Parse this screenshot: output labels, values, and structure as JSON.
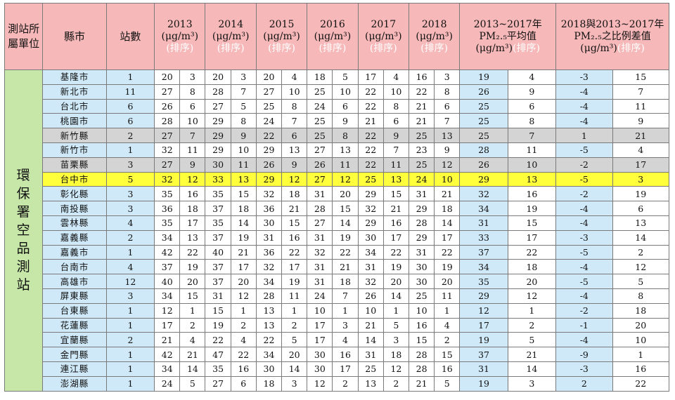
{
  "headers": {
    "unit": "測站所屬單位",
    "county": "縣市",
    "stations": "站數",
    "years": [
      "2013",
      "2014",
      "2015",
      "2016",
      "2017",
      "2018"
    ],
    "unit_text": "(μg/m³)",
    "rank_text": "(排序)",
    "avg_line1": "2013~2017年",
    "avg_line2": "PM₂.₅平均值",
    "avg_unit": "(μg/m³)",
    "diff_line1": "2018與2013~2017年",
    "diff_line2": "PM₂.₅之比例差值",
    "diff_unit": "(μg/m³)"
  },
  "unit_label": [
    "環",
    "保",
    "署",
    "空",
    "品",
    "測",
    "站"
  ],
  "rows": [
    {
      "county": "基隆市",
      "stations": "1",
      "v": [
        "20",
        "3",
        "20",
        "3",
        "20",
        "4",
        "18",
        "5",
        "17",
        "4",
        "16",
        "3"
      ],
      "avg": "19",
      "avg_rank": "4",
      "diff": "-3",
      "diff_rank": "15",
      "hl": ""
    },
    {
      "county": "新北市",
      "stations": "11",
      "v": [
        "27",
        "8",
        "28",
        "7",
        "27",
        "10",
        "25",
        "10",
        "22",
        "10",
        "22",
        "8"
      ],
      "avg": "26",
      "avg_rank": "9",
      "diff": "-4",
      "diff_rank": "7",
      "hl": ""
    },
    {
      "county": "台北市",
      "stations": "6",
      "v": [
        "26",
        "6",
        "27",
        "5",
        "25",
        "8",
        "24",
        "6",
        "22",
        "8",
        "21",
        "6"
      ],
      "avg": "25",
      "avg_rank": "6",
      "diff": "-4",
      "diff_rank": "11",
      "hl": ""
    },
    {
      "county": "桃園市",
      "stations": "6",
      "v": [
        "28",
        "10",
        "29",
        "8",
        "24",
        "7",
        "25",
        "9",
        "21",
        "6",
        "21",
        "7"
      ],
      "avg": "25",
      "avg_rank": "8",
      "diff": "-4",
      "diff_rank": "9",
      "hl": ""
    },
    {
      "county": "新竹縣",
      "stations": "2",
      "v": [
        "27",
        "7",
        "29",
        "9",
        "22",
        "6",
        "25",
        "8",
        "22",
        "9",
        "25",
        "13"
      ],
      "avg": "25",
      "avg_rank": "7",
      "diff": "1",
      "diff_rank": "21",
      "hl": "gray"
    },
    {
      "county": "新竹市",
      "stations": "1",
      "v": [
        "32",
        "11",
        "29",
        "10",
        "29",
        "13",
        "27",
        "13",
        "22",
        "7",
        "23",
        "9"
      ],
      "avg": "28",
      "avg_rank": "11",
      "diff": "-5",
      "diff_rank": "4",
      "hl": ""
    },
    {
      "county": "苗栗縣",
      "stations": "3",
      "v": [
        "27",
        "9",
        "30",
        "11",
        "26",
        "9",
        "26",
        "11",
        "22",
        "11",
        "25",
        "12"
      ],
      "avg": "26",
      "avg_rank": "10",
      "diff": "-2",
      "diff_rank": "17",
      "hl": "gray"
    },
    {
      "county": "台中市",
      "stations": "5",
      "v": [
        "32",
        "12",
        "33",
        "13",
        "29",
        "12",
        "27",
        "12",
        "25",
        "13",
        "24",
        "10"
      ],
      "avg": "29",
      "avg_rank": "13",
      "diff": "-5",
      "diff_rank": "3",
      "hl": "yellow"
    },
    {
      "county": "彰化縣",
      "stations": "3",
      "v": [
        "35",
        "16",
        "35",
        "15",
        "32",
        "18",
        "31",
        "20",
        "29",
        "15",
        "31",
        "21"
      ],
      "avg": "32",
      "avg_rank": "16",
      "diff": "-2",
      "diff_rank": "19",
      "hl": ""
    },
    {
      "county": "南投縣",
      "stations": "3",
      "v": [
        "36",
        "18",
        "37",
        "18",
        "36",
        "21",
        "28",
        "15",
        "32",
        "21",
        "29",
        "18"
      ],
      "avg": "34",
      "avg_rank": "19",
      "diff": "-4",
      "diff_rank": "6",
      "hl": ""
    },
    {
      "county": "雲林縣",
      "stations": "4",
      "v": [
        "35",
        "17",
        "35",
        "14",
        "30",
        "15",
        "27",
        "14",
        "29",
        "16",
        "28",
        "14"
      ],
      "avg": "31",
      "avg_rank": "15",
      "diff": "-4",
      "diff_rank": "13",
      "hl": ""
    },
    {
      "county": "嘉義縣",
      "stations": "2",
      "v": [
        "34",
        "13",
        "37",
        "19",
        "31",
        "16",
        "31",
        "19",
        "30",
        "17",
        "29",
        "17"
      ],
      "avg": "33",
      "avg_rank": "17",
      "diff": "-3",
      "diff_rank": "14",
      "hl": ""
    },
    {
      "county": "嘉義市",
      "stations": "1",
      "v": [
        "42",
        "22",
        "40",
        "21",
        "36",
        "22",
        "32",
        "22",
        "34",
        "22",
        "31",
        "22"
      ],
      "avg": "37",
      "avg_rank": "22",
      "diff": "-5",
      "diff_rank": "2",
      "hl": ""
    },
    {
      "county": "台南市",
      "stations": "4",
      "v": [
        "37",
        "19",
        "37",
        "17",
        "32",
        "17",
        "31",
        "21",
        "31",
        "19",
        "30",
        "19"
      ],
      "avg": "34",
      "avg_rank": "18",
      "diff": "-4",
      "diff_rank": "12",
      "hl": ""
    },
    {
      "county": "高雄市",
      "stations": "12",
      "v": [
        "40",
        "20",
        "37",
        "20",
        "34",
        "19",
        "31",
        "18",
        "32",
        "20",
        "30",
        "20"
      ],
      "avg": "35",
      "avg_rank": "20",
      "diff": "-5",
      "diff_rank": "5",
      "hl": ""
    },
    {
      "county": "屏東縣",
      "stations": "3",
      "v": [
        "34",
        "15",
        "31",
        "12",
        "28",
        "11",
        "24",
        "7",
        "26",
        "14",
        "25",
        "11"
      ],
      "avg": "29",
      "avg_rank": "12",
      "diff": "-4",
      "diff_rank": "8",
      "hl": ""
    },
    {
      "county": "台東縣",
      "stations": "1",
      "v": [
        "12",
        "1",
        "15",
        "1",
        "13",
        "1",
        "10",
        "1",
        "10",
        "1",
        "10",
        "1"
      ],
      "avg": "12",
      "avg_rank": "1",
      "diff": "-2",
      "diff_rank": "18",
      "hl": ""
    },
    {
      "county": "花蓮縣",
      "stations": "1",
      "v": [
        "17",
        "2",
        "19",
        "2",
        "13",
        "2",
        "17",
        "3",
        "21",
        "5",
        "16",
        "4"
      ],
      "avg": "17",
      "avg_rank": "2",
      "diff": "-1",
      "diff_rank": "20",
      "hl": ""
    },
    {
      "county": "宜蘭縣",
      "stations": "2",
      "v": [
        "21",
        "4",
        "22",
        "4",
        "22",
        "5",
        "17",
        "4",
        "14",
        "3",
        "15",
        "2"
      ],
      "avg": "19",
      "avg_rank": "5",
      "diff": "-4",
      "diff_rank": "10",
      "hl": ""
    },
    {
      "county": "金門縣",
      "stations": "1",
      "v": [
        "42",
        "21",
        "47",
        "22",
        "34",
        "20",
        "30",
        "16",
        "31",
        "18",
        "28",
        "15"
      ],
      "avg": "37",
      "avg_rank": "21",
      "diff": "-9",
      "diff_rank": "1",
      "hl": ""
    },
    {
      "county": "連江縣",
      "stations": "1",
      "v": [
        "34",
        "14",
        "35",
        "16",
        "30",
        "14",
        "30",
        "17",
        "25",
        "12",
        "28",
        "16"
      ],
      "avg": "31",
      "avg_rank": "14",
      "diff": "-3",
      "diff_rank": "16",
      "hl": ""
    },
    {
      "county": "澎湖縣",
      "stations": "1",
      "v": [
        "24",
        "5",
        "27",
        "6",
        "18",
        "3",
        "12",
        "2",
        "13",
        "2",
        "21",
        "5"
      ],
      "avg": "19",
      "avg_rank": "3",
      "diff": "2",
      "diff_rank": "22",
      "hl": ""
    }
  ]
}
